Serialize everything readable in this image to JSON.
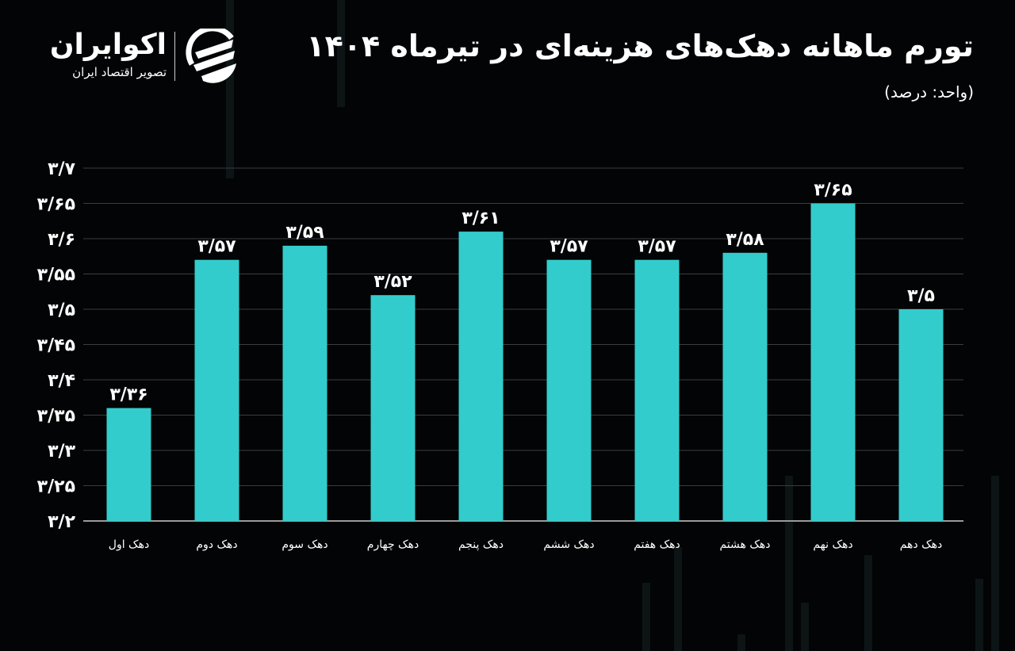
{
  "header": {
    "title": "تورم ماهانه دهک‌های هزینه‌ای در تیرماه ۱۴۰۴",
    "subtitle": "(واحد: درصد)"
  },
  "logo": {
    "name": "اکوایران",
    "tagline": "تصویر اقتصاد ایران"
  },
  "colors": {
    "bar": "#33cccc",
    "background": "#030405",
    "grid": "#3a3d42",
    "text": "#ffffff"
  },
  "chart_data": {
    "type": "bar",
    "title": "تورم ماهانه دهک‌های هزینه‌ای در تیرماه ۱۴۰۴",
    "ylabel": "",
    "unit": "(واحد: درصد)",
    "ylim": [
      3.2,
      3.7
    ],
    "grid": true,
    "yticks": [
      3.2,
      3.25,
      3.3,
      3.35,
      3.4,
      3.45,
      3.5,
      3.55,
      3.6,
      3.65,
      3.7
    ],
    "ytick_labels": [
      "۳/۲",
      "۳/۲۵",
      "۳/۳",
      "۳/۳۵",
      "۳/۴",
      "۳/۴۵",
      "۳/۵",
      "۳/۵۵",
      "۳/۶",
      "۳/۶۵",
      "۳/۷"
    ],
    "categories": [
      "دهک اول",
      "دهک دوم",
      "دهک سوم",
      "دهک چهارم",
      "دهک پنجم",
      "دهک ششم",
      "دهک هفتم",
      "دهک هشتم",
      "دهک نهم",
      "دهک دهم"
    ],
    "values": [
      3.36,
      3.57,
      3.59,
      3.52,
      3.61,
      3.57,
      3.57,
      3.58,
      3.65,
      3.5
    ],
    "data_labels": [
      "۳/۳۶",
      "۳/۵۷",
      "۳/۵۹",
      "۳/۵۲",
      "۳/۶۱",
      "۳/۵۷",
      "۳/۵۷",
      "۳/۵۸",
      "۳/۶۵",
      "۳/۵"
    ]
  }
}
